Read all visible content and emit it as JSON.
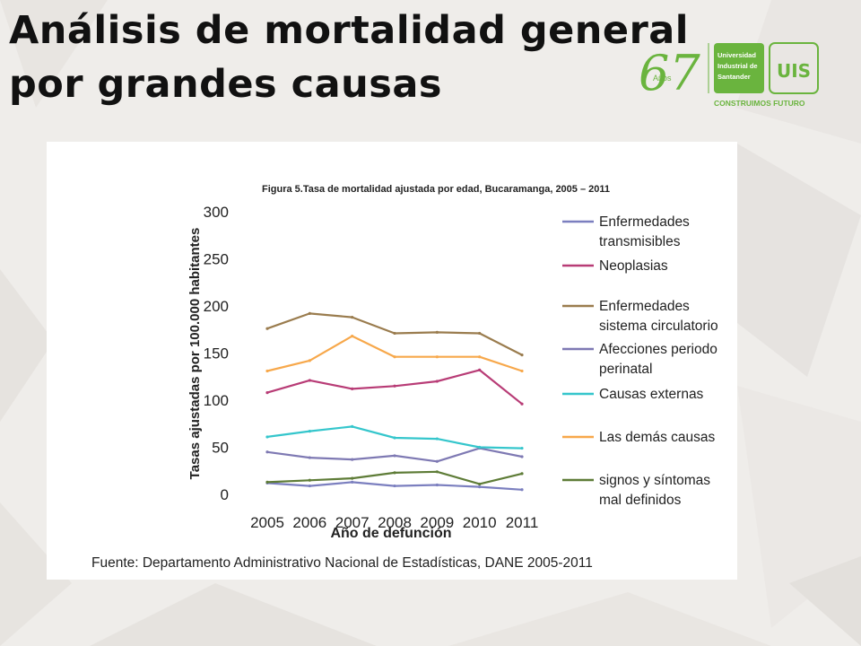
{
  "slide": {
    "title_line1": "Análisis de mortalidad general",
    "title_line2": "por grandes causas"
  },
  "logo": {
    "anniversary_number": "67",
    "anniversary_word": "Años",
    "institution_line1": "Universidad",
    "institution_line2": "Industrial de",
    "institution_line3": "Santander",
    "acronym": "UIS",
    "slogan": "CONSTRUIMOS FUTURO",
    "brand_color": "#6ab43e"
  },
  "chart_data": {
    "type": "line",
    "title": "Figura 5.Tasa de mortalidad ajustada por edad, Bucaramanga, 2005 – 2011",
    "xlabel": "Año de defunción",
    "ylabel": "Tasas ajustadas por 100.000 habitantes",
    "x": [
      "2005",
      "2006",
      "2007",
      "2008",
      "2009",
      "2010",
      "2011"
    ],
    "ylim": [
      0,
      300
    ],
    "yticks": [
      0,
      50,
      100,
      150,
      200,
      250,
      300
    ],
    "grid": false,
    "legend_position": "right",
    "source": "Fuente: Departamento Administrativo Nacional de Estadísticas, DANE 2005-2011",
    "series": [
      {
        "name": "Enfermedades transmisibles",
        "legend_lines": [
          "Enfermedades",
          "transmisibles"
        ],
        "color": "#7b7fbf",
        "values": [
          12,
          9,
          13,
          9,
          10,
          8,
          5
        ]
      },
      {
        "name": "Neoplasias",
        "legend_lines": [
          "Neoplasias"
        ],
        "color": "#b83c76",
        "values": [
          108,
          121,
          112,
          115,
          120,
          132,
          96
        ]
      },
      {
        "name": "Enfermedades sistema circulatorio",
        "legend_lines": [
          "Enfermedades",
          "sistema circulatorio"
        ],
        "color": "#9a7c4e",
        "values": [
          176,
          192,
          188,
          171,
          172,
          171,
          148
        ]
      },
      {
        "name": "Afecciones periodo perinatal",
        "legend_lines": [
          "Afecciones periodo",
          "perinatal"
        ],
        "color": "#7e79b3",
        "values": [
          45,
          39,
          37,
          41,
          35,
          49,
          40
        ]
      },
      {
        "name": "Causas externas",
        "legend_lines": [
          "Causas externas"
        ],
        "color": "#35c6cc",
        "values": [
          61,
          67,
          72,
          60,
          59,
          50,
          49
        ]
      },
      {
        "name": "Las demás causas",
        "legend_lines": [
          "Las demás causas"
        ],
        "color": "#f7a84b",
        "values": [
          131,
          142,
          168,
          146,
          146,
          146,
          131
        ]
      },
      {
        "name": "signos y síntomas mal definidos",
        "legend_lines": [
          "signos y síntomas",
          "mal definidos"
        ],
        "color": "#5e7c37",
        "values": [
          13,
          15,
          17,
          23,
          24,
          11,
          22
        ]
      }
    ]
  }
}
